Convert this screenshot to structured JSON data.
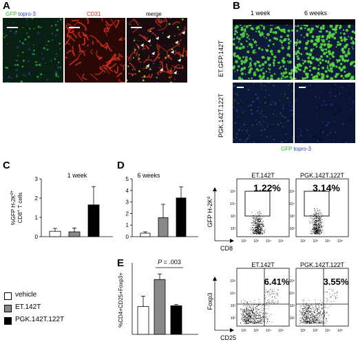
{
  "panel_letters": [
    "A",
    "B",
    "C",
    "D",
    "E"
  ],
  "panelA": {
    "labels": {
      "gfp": "GFP",
      "topro": "topro-3",
      "cd31": "CD31",
      "merge": "merge"
    },
    "colors": {
      "green": "#4ade3a",
      "blue": "#3a5fd9",
      "red": "#e23a2a"
    }
  },
  "panelB": {
    "col_labels": [
      "1 week",
      "6 weeks"
    ],
    "row_labels": [
      "ET.GFP.142T",
      "PGK.142T.122T"
    ],
    "legend_gfp": "GFP",
    "legend_topro": "topro-3"
  },
  "legend": {
    "items": [
      {
        "label": "vehicle",
        "color": "#ffffff"
      },
      {
        "label": "ET.142T",
        "color": "#888888"
      },
      {
        "label": "PGK.142T.122T",
        "color": "#000000"
      }
    ]
  },
  "chart_data": [
    {
      "panel": "C",
      "type": "bar",
      "title": "1 week",
      "ylabel": "%GFP H-2Kd+ CD8+ T cells",
      "ylim": [
        0,
        3
      ],
      "yticks": [
        "0",
        "1",
        "2",
        "3"
      ],
      "categories": [
        "vehicle",
        "ET.142T",
        "PGK.142T.122T"
      ],
      "values": [
        0.28,
        0.25,
        1.65
      ],
      "errors": [
        0.15,
        0.2,
        0.95
      ],
      "colors": [
        "#ffffff",
        "#888888",
        "#000000"
      ]
    },
    {
      "panel": "D",
      "type": "bar",
      "title": "6 weeks",
      "ylabel": "",
      "ylim": [
        0,
        5
      ],
      "yticks": [
        "0",
        "1",
        "2",
        "3",
        "4",
        "5"
      ],
      "categories": [
        "vehicle",
        "ET.142T",
        "PGK.142T.122T"
      ],
      "values": [
        0.3,
        1.65,
        3.35
      ],
      "errors": [
        0.12,
        1.15,
        0.95
      ],
      "colors": [
        "#ffffff",
        "#888888",
        "#000000"
      ]
    },
    {
      "panel": "E",
      "type": "bar",
      "title": "",
      "ylabel": "%CD4+CD25+Foxp3+",
      "ylim": [
        0,
        9
      ],
      "yticks": [],
      "categories": [
        "vehicle",
        "ET.142T",
        "PGK.142T.122T"
      ],
      "values": [
        3.5,
        6.9,
        3.6
      ],
      "errors": [
        1.3,
        0.7,
        0.15
      ],
      "colors": [
        "#ffffff",
        "#888888",
        "#000000"
      ],
      "annotation": "P = .003"
    }
  ],
  "flowD": {
    "plots": [
      {
        "title": "ET.142T",
        "percent": "1.22%"
      },
      {
        "title": "PGK.142T.122T",
        "percent": "3.14%"
      }
    ],
    "ylabel": "GFP H-2Kd",
    "xlabel": "CD8",
    "ticks": [
      "10²",
      "10³",
      "10⁴",
      "10⁵"
    ]
  },
  "flowE": {
    "plots": [
      {
        "title": "ET.142T",
        "percent": "6.41%"
      },
      {
        "title": "PGK.142T.122T",
        "percent": "3.55%"
      }
    ],
    "ylabel": "Foxp3",
    "xlabel": "CD25",
    "ticks": [
      "10²",
      "10³",
      "10⁴",
      "10⁵"
    ]
  }
}
